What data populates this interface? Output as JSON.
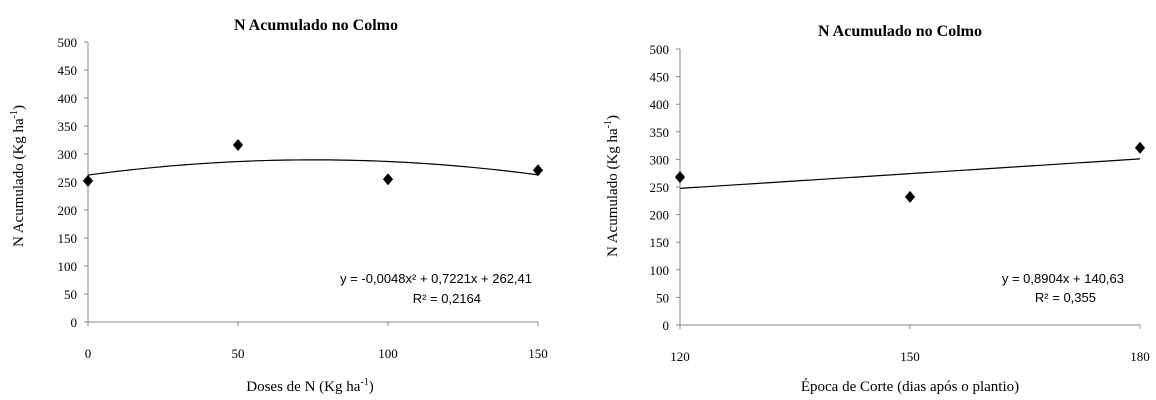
{
  "chart_data": [
    {
      "type": "scatter",
      "title": "N Acumulado  no Colmo",
      "xlabel": "Doses de N (Kg ha",
      "xlabel_sup": "-1",
      "xlabel_end": ")",
      "ylabel": "N Acumulado  (Kg ha",
      "ylabel_sup": "-1",
      "ylabel_end": ")",
      "xlim": [
        0,
        150
      ],
      "ylim": [
        0,
        500
      ],
      "xticks": [
        0,
        50,
        100,
        150
      ],
      "yticks": [
        0,
        50,
        100,
        150,
        200,
        250,
        300,
        350,
        400,
        450,
        500
      ],
      "grid": false,
      "series": [
        {
          "x": [
            0,
            50,
            100,
            150
          ],
          "y": [
            252,
            316,
            255,
            271
          ],
          "marker": "diamond",
          "color": "#000000"
        }
      ],
      "trendline": {
        "kind": "poly2",
        "a": -0.0048,
        "b": 0.7221,
        "c": 262.41,
        "color": "#000000"
      },
      "equation": "y = -0,0048x² + 0,7221x + 262,41",
      "r2": "R² = 0,2164"
    },
    {
      "type": "scatter",
      "title": "N Acumulado no Colmo",
      "xlabel": "Época de Corte (dias após o plantio)",
      "ylabel": "N Acumulado (Kg ha",
      "ylabel_sup": "-1",
      "ylabel_end": ")",
      "xlim": [
        120,
        180
      ],
      "ylim": [
        0,
        500
      ],
      "xticks": [
        120,
        150,
        180
      ],
      "yticks": [
        0,
        50,
        100,
        150,
        200,
        250,
        300,
        350,
        400,
        450,
        500
      ],
      "grid": false,
      "series": [
        {
          "x": [
            120,
            150,
            180
          ],
          "y": [
            268,
            232,
            321
          ],
          "marker": "diamond",
          "color": "#000000"
        }
      ],
      "trendline": {
        "kind": "linear",
        "a": 0.8904,
        "b": 140.63,
        "color": "#000000"
      },
      "equation": "y = 0,8904x + 140,63",
      "r2": "R² = 0,355"
    }
  ]
}
